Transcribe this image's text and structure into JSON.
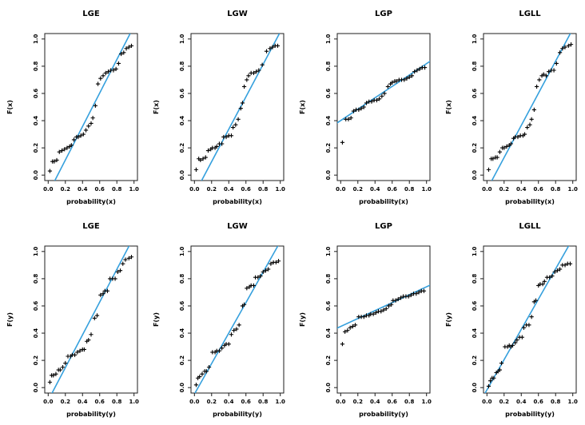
{
  "figure": {
    "background": "#ffffff",
    "grid_rows": 2,
    "grid_cols": 4
  },
  "colors": {
    "fit_line": "#35a0dd",
    "marker": "#000000",
    "frame": "#1c1c1c",
    "text": "#000000"
  },
  "chart_data": [
    {
      "type": "scatter",
      "title": "LGE",
      "xlabel": "probability(x)",
      "ylabel": "F(x)",
      "xlim": [
        0,
        1
      ],
      "ylim": [
        0,
        1
      ],
      "xticks": [
        "0.0",
        "0.2",
        "0.4",
        "0.6",
        "0.8",
        "1.0"
      ],
      "yticks": [
        "0.0",
        "0.2",
        "0.4",
        "0.6",
        "0.8",
        "1.0"
      ],
      "marker": "plus",
      "grid": false,
      "fit_line": {
        "x1": 0.045,
        "y1": -0.08,
        "x2": 0.955,
        "y2": 1.04
      },
      "points": [
        [
          0.02,
          0.03
        ],
        [
          0.05,
          0.1
        ],
        [
          0.07,
          0.1
        ],
        [
          0.1,
          0.11
        ],
        [
          0.13,
          0.17
        ],
        [
          0.16,
          0.18
        ],
        [
          0.19,
          0.19
        ],
        [
          0.22,
          0.2
        ],
        [
          0.25,
          0.21
        ],
        [
          0.27,
          0.22
        ],
        [
          0.3,
          0.26
        ],
        [
          0.33,
          0.28
        ],
        [
          0.35,
          0.28
        ],
        [
          0.38,
          0.29
        ],
        [
          0.41,
          0.3
        ],
        [
          0.44,
          0.33
        ],
        [
          0.47,
          0.36
        ],
        [
          0.5,
          0.38
        ],
        [
          0.52,
          0.42
        ],
        [
          0.55,
          0.51
        ],
        [
          0.58,
          0.67
        ],
        [
          0.61,
          0.71
        ],
        [
          0.64,
          0.73
        ],
        [
          0.67,
          0.75
        ],
        [
          0.7,
          0.76
        ],
        [
          0.73,
          0.77
        ],
        [
          0.76,
          0.77
        ],
        [
          0.79,
          0.78
        ],
        [
          0.82,
          0.82
        ],
        [
          0.85,
          0.89
        ],
        [
          0.88,
          0.9
        ],
        [
          0.91,
          0.93
        ],
        [
          0.94,
          0.94
        ],
        [
          0.97,
          0.95
        ]
      ]
    },
    {
      "type": "scatter",
      "title": "LGW",
      "xlabel": "probability(x)",
      "ylabel": "F(x)",
      "xlim": [
        0,
        1
      ],
      "ylim": [
        0,
        1
      ],
      "xticks": [
        "0.0",
        "0.2",
        "0.4",
        "0.6",
        "0.8",
        "1.0"
      ],
      "yticks": [
        "0.0",
        "0.2",
        "0.4",
        "0.6",
        "0.8",
        "1.0"
      ],
      "marker": "plus",
      "grid": false,
      "fit_line": {
        "x1": 0.05,
        "y1": -0.08,
        "x2": 0.99,
        "y2": 1.04
      },
      "points": [
        [
          0.02,
          0.04
        ],
        [
          0.05,
          0.12
        ],
        [
          0.07,
          0.11
        ],
        [
          0.1,
          0.12
        ],
        [
          0.13,
          0.13
        ],
        [
          0.16,
          0.18
        ],
        [
          0.19,
          0.19
        ],
        [
          0.21,
          0.2
        ],
        [
          0.24,
          0.2
        ],
        [
          0.26,
          0.21
        ],
        [
          0.29,
          0.23
        ],
        [
          0.32,
          0.23
        ],
        [
          0.34,
          0.28
        ],
        [
          0.37,
          0.28
        ],
        [
          0.4,
          0.29
        ],
        [
          0.43,
          0.29
        ],
        [
          0.45,
          0.35
        ],
        [
          0.48,
          0.37
        ],
        [
          0.51,
          0.41
        ],
        [
          0.54,
          0.49
        ],
        [
          0.56,
          0.53
        ],
        [
          0.58,
          0.65
        ],
        [
          0.61,
          0.7
        ],
        [
          0.63,
          0.73
        ],
        [
          0.66,
          0.75
        ],
        [
          0.69,
          0.75
        ],
        [
          0.72,
          0.76
        ],
        [
          0.75,
          0.77
        ],
        [
          0.79,
          0.81
        ],
        [
          0.84,
          0.91
        ],
        [
          0.88,
          0.93
        ],
        [
          0.91,
          0.94
        ],
        [
          0.94,
          0.95
        ],
        [
          0.97,
          0.95
        ]
      ]
    },
    {
      "type": "scatter",
      "title": "LGP",
      "xlabel": "probability(x)",
      "ylabel": "F(x)",
      "xlim": [
        0,
        1
      ],
      "ylim": [
        0,
        1
      ],
      "xticks": [
        "0.0",
        "0.2",
        "0.4",
        "0.6",
        "0.8",
        "1.0"
      ],
      "yticks": [
        "0.0",
        "0.2",
        "0.4",
        "0.6",
        "0.8",
        "1.0"
      ],
      "marker": "plus",
      "grid": false,
      "fit_line": {
        "x1": -0.05,
        "y1": 0.38,
        "x2": 1.05,
        "y2": 0.84
      },
      "points": [
        [
          0.02,
          0.24
        ],
        [
          0.06,
          0.41
        ],
        [
          0.09,
          0.41
        ],
        [
          0.12,
          0.42
        ],
        [
          0.15,
          0.47
        ],
        [
          0.18,
          0.48
        ],
        [
          0.21,
          0.48
        ],
        [
          0.24,
          0.49
        ],
        [
          0.27,
          0.5
        ],
        [
          0.3,
          0.53
        ],
        [
          0.33,
          0.54
        ],
        [
          0.36,
          0.54
        ],
        [
          0.39,
          0.55
        ],
        [
          0.42,
          0.55
        ],
        [
          0.45,
          0.56
        ],
        [
          0.48,
          0.58
        ],
        [
          0.51,
          0.6
        ],
        [
          0.55,
          0.65
        ],
        [
          0.58,
          0.67
        ],
        [
          0.6,
          0.68
        ],
        [
          0.63,
          0.69
        ],
        [
          0.65,
          0.69
        ],
        [
          0.68,
          0.7
        ],
        [
          0.71,
          0.7
        ],
        [
          0.74,
          0.7
        ],
        [
          0.77,
          0.71
        ],
        [
          0.8,
          0.72
        ],
        [
          0.83,
          0.73
        ],
        [
          0.86,
          0.76
        ],
        [
          0.89,
          0.77
        ],
        [
          0.92,
          0.78
        ],
        [
          0.95,
          0.79
        ],
        [
          0.98,
          0.79
        ]
      ]
    },
    {
      "type": "scatter",
      "title": "LGLL",
      "xlabel": "probability(x)",
      "ylabel": "F(x)",
      "xlim": [
        0,
        1
      ],
      "ylim": [
        0,
        1
      ],
      "xticks": [
        "0.0",
        "0.2",
        "0.4",
        "0.6",
        "0.8",
        "1.0"
      ],
      "yticks": [
        "0.0",
        "0.2",
        "0.4",
        "0.6",
        "0.8",
        "1.0"
      ],
      "marker": "plus",
      "grid": false,
      "fit_line": {
        "x1": 0.04,
        "y1": -0.06,
        "x2": 0.98,
        "y2": 1.05
      },
      "points": [
        [
          0.02,
          0.04
        ],
        [
          0.05,
          0.12
        ],
        [
          0.07,
          0.12
        ],
        [
          0.1,
          0.13
        ],
        [
          0.12,
          0.13
        ],
        [
          0.15,
          0.17
        ],
        [
          0.18,
          0.2
        ],
        [
          0.2,
          0.2
        ],
        [
          0.23,
          0.21
        ],
        [
          0.26,
          0.22
        ],
        [
          0.28,
          0.23
        ],
        [
          0.31,
          0.27
        ],
        [
          0.33,
          0.28
        ],
        [
          0.36,
          0.28
        ],
        [
          0.39,
          0.29
        ],
        [
          0.42,
          0.29
        ],
        [
          0.44,
          0.3
        ],
        [
          0.47,
          0.35
        ],
        [
          0.5,
          0.37
        ],
        [
          0.52,
          0.41
        ],
        [
          0.55,
          0.48
        ],
        [
          0.58,
          0.65
        ],
        [
          0.61,
          0.7
        ],
        [
          0.64,
          0.73
        ],
        [
          0.66,
          0.74
        ],
        [
          0.69,
          0.73
        ],
        [
          0.72,
          0.76
        ],
        [
          0.75,
          0.77
        ],
        [
          0.78,
          0.77
        ],
        [
          0.81,
          0.82
        ],
        [
          0.85,
          0.9
        ],
        [
          0.88,
          0.93
        ],
        [
          0.91,
          0.94
        ],
        [
          0.95,
          0.95
        ],
        [
          0.98,
          0.96
        ]
      ]
    },
    {
      "type": "scatter",
      "title": "LGE",
      "xlabel": "probability(y)",
      "ylabel": "F(y)",
      "xlim": [
        0,
        1
      ],
      "ylim": [
        0,
        1
      ],
      "xticks": [
        "0.0",
        "0.2",
        "0.4",
        "0.6",
        "0.8",
        "1.0"
      ],
      "yticks": [
        "0.0",
        "0.2",
        "0.4",
        "0.6",
        "0.8",
        "1.0"
      ],
      "marker": "plus",
      "grid": false,
      "fit_line": {
        "x1": 0.02,
        "y1": -0.07,
        "x2": 0.95,
        "y2": 1.05
      },
      "points": [
        [
          0.02,
          0.04
        ],
        [
          0.04,
          0.09
        ],
        [
          0.06,
          0.09
        ],
        [
          0.09,
          0.1
        ],
        [
          0.12,
          0.13
        ],
        [
          0.14,
          0.13
        ],
        [
          0.17,
          0.15
        ],
        [
          0.2,
          0.18
        ],
        [
          0.23,
          0.23
        ],
        [
          0.26,
          0.23
        ],
        [
          0.28,
          0.24
        ],
        [
          0.31,
          0.24
        ],
        [
          0.34,
          0.26
        ],
        [
          0.37,
          0.27
        ],
        [
          0.4,
          0.28
        ],
        [
          0.42,
          0.28
        ],
        [
          0.45,
          0.34
        ],
        [
          0.47,
          0.35
        ],
        [
          0.5,
          0.39
        ],
        [
          0.54,
          0.51
        ],
        [
          0.57,
          0.53
        ],
        [
          0.61,
          0.68
        ],
        [
          0.64,
          0.69
        ],
        [
          0.66,
          0.71
        ],
        [
          0.69,
          0.71
        ],
        [
          0.72,
          0.8
        ],
        [
          0.75,
          0.8
        ],
        [
          0.78,
          0.8
        ],
        [
          0.81,
          0.85
        ],
        [
          0.84,
          0.86
        ],
        [
          0.87,
          0.91
        ],
        [
          0.9,
          0.94
        ],
        [
          0.94,
          0.95
        ],
        [
          0.97,
          0.96
        ]
      ]
    },
    {
      "type": "scatter",
      "title": "LGW",
      "xlabel": "probability(y)",
      "ylabel": "F(y)",
      "xlim": [
        0,
        1
      ],
      "ylim": [
        0,
        1
      ],
      "xticks": [
        "0.0",
        "0.2",
        "0.4",
        "0.6",
        "0.8",
        "1.0"
      ],
      "yticks": [
        "0.0",
        "0.2",
        "0.4",
        "0.6",
        "0.8",
        "1.0"
      ],
      "marker": "plus",
      "grid": false,
      "fit_line": {
        "x1": -0.02,
        "y1": -0.07,
        "x2": 0.98,
        "y2": 1.05
      },
      "points": [
        [
          0.02,
          0.02
        ],
        [
          0.04,
          0.07
        ],
        [
          0.06,
          0.08
        ],
        [
          0.09,
          0.1
        ],
        [
          0.12,
          0.12
        ],
        [
          0.14,
          0.12
        ],
        [
          0.17,
          0.15
        ],
        [
          0.21,
          0.26
        ],
        [
          0.24,
          0.26
        ],
        [
          0.26,
          0.27
        ],
        [
          0.29,
          0.27
        ],
        [
          0.32,
          0.29
        ],
        [
          0.35,
          0.31
        ],
        [
          0.37,
          0.32
        ],
        [
          0.4,
          0.32
        ],
        [
          0.43,
          0.39
        ],
        [
          0.46,
          0.42
        ],
        [
          0.49,
          0.43
        ],
        [
          0.52,
          0.46
        ],
        [
          0.56,
          0.6
        ],
        [
          0.58,
          0.61
        ],
        [
          0.61,
          0.73
        ],
        [
          0.64,
          0.74
        ],
        [
          0.66,
          0.75
        ],
        [
          0.69,
          0.75
        ],
        [
          0.71,
          0.81
        ],
        [
          0.74,
          0.81
        ],
        [
          0.77,
          0.82
        ],
        [
          0.8,
          0.85
        ],
        [
          0.83,
          0.86
        ],
        [
          0.86,
          0.87
        ],
        [
          0.89,
          0.91
        ],
        [
          0.92,
          0.92
        ],
        [
          0.95,
          0.92
        ],
        [
          0.98,
          0.93
        ]
      ]
    },
    {
      "type": "scatter",
      "title": "LGP",
      "xlabel": "probability(y)",
      "ylabel": "F(y)",
      "xlim": [
        0,
        1
      ],
      "ylim": [
        0,
        1
      ],
      "xticks": [
        "0.0",
        "0.2",
        "0.4",
        "0.6",
        "0.8",
        "1.0"
      ],
      "yticks": [
        "0.0",
        "0.2",
        "0.4",
        "0.6",
        "0.8",
        "1.0"
      ],
      "marker": "plus",
      "grid": false,
      "fit_line": {
        "x1": -0.05,
        "y1": 0.435,
        "x2": 1.05,
        "y2": 0.755
      },
      "points": [
        [
          0.02,
          0.32
        ],
        [
          0.05,
          0.41
        ],
        [
          0.08,
          0.42
        ],
        [
          0.11,
          0.44
        ],
        [
          0.14,
          0.45
        ],
        [
          0.17,
          0.46
        ],
        [
          0.21,
          0.52
        ],
        [
          0.24,
          0.52
        ],
        [
          0.27,
          0.52
        ],
        [
          0.3,
          0.53
        ],
        [
          0.33,
          0.53
        ],
        [
          0.35,
          0.54
        ],
        [
          0.38,
          0.54
        ],
        [
          0.41,
          0.55
        ],
        [
          0.44,
          0.56
        ],
        [
          0.47,
          0.56
        ],
        [
          0.5,
          0.57
        ],
        [
          0.53,
          0.58
        ],
        [
          0.56,
          0.6
        ],
        [
          0.59,
          0.61
        ],
        [
          0.61,
          0.64
        ],
        [
          0.64,
          0.64
        ],
        [
          0.67,
          0.65
        ],
        [
          0.7,
          0.66
        ],
        [
          0.73,
          0.67
        ],
        [
          0.76,
          0.67
        ],
        [
          0.79,
          0.67
        ],
        [
          0.82,
          0.68
        ],
        [
          0.85,
          0.69
        ],
        [
          0.88,
          0.69
        ],
        [
          0.91,
          0.7
        ],
        [
          0.94,
          0.71
        ],
        [
          0.97,
          0.71
        ]
      ]
    },
    {
      "type": "scatter",
      "title": "LGLL",
      "xlabel": "probability(y)",
      "ylabel": "F(y)",
      "xlim": [
        0,
        1
      ],
      "ylim": [
        0,
        1
      ],
      "xticks": [
        "0.0",
        "0.2",
        "0.4",
        "0.6",
        "0.8",
        "1.0"
      ],
      "yticks": [
        "0.0",
        "0.2",
        "0.4",
        "0.6",
        "0.8",
        "1.0"
      ],
      "marker": "plus",
      "grid": false,
      "fit_line": {
        "x1": -0.03,
        "y1": -0.05,
        "x2": 0.96,
        "y2": 1.05
      },
      "points": [
        [
          0.02,
          0.01
        ],
        [
          0.04,
          0.05
        ],
        [
          0.06,
          0.07
        ],
        [
          0.08,
          0.07
        ],
        [
          0.11,
          0.11
        ],
        [
          0.13,
          0.12
        ],
        [
          0.15,
          0.13
        ],
        [
          0.17,
          0.18
        ],
        [
          0.21,
          0.3
        ],
        [
          0.24,
          0.3
        ],
        [
          0.26,
          0.31
        ],
        [
          0.28,
          0.3
        ],
        [
          0.3,
          0.31
        ],
        [
          0.33,
          0.33
        ],
        [
          0.35,
          0.35
        ],
        [
          0.38,
          0.37
        ],
        [
          0.41,
          0.37
        ],
        [
          0.43,
          0.44
        ],
        [
          0.46,
          0.46
        ],
        [
          0.49,
          0.46
        ],
        [
          0.52,
          0.52
        ],
        [
          0.55,
          0.63
        ],
        [
          0.57,
          0.64
        ],
        [
          0.6,
          0.75
        ],
        [
          0.62,
          0.76
        ],
        [
          0.65,
          0.76
        ],
        [
          0.67,
          0.78
        ],
        [
          0.7,
          0.81
        ],
        [
          0.73,
          0.81
        ],
        [
          0.76,
          0.82
        ],
        [
          0.79,
          0.85
        ],
        [
          0.82,
          0.86
        ],
        [
          0.85,
          0.87
        ],
        [
          0.88,
          0.9
        ],
        [
          0.91,
          0.9
        ],
        [
          0.94,
          0.91
        ],
        [
          0.97,
          0.91
        ]
      ]
    }
  ]
}
